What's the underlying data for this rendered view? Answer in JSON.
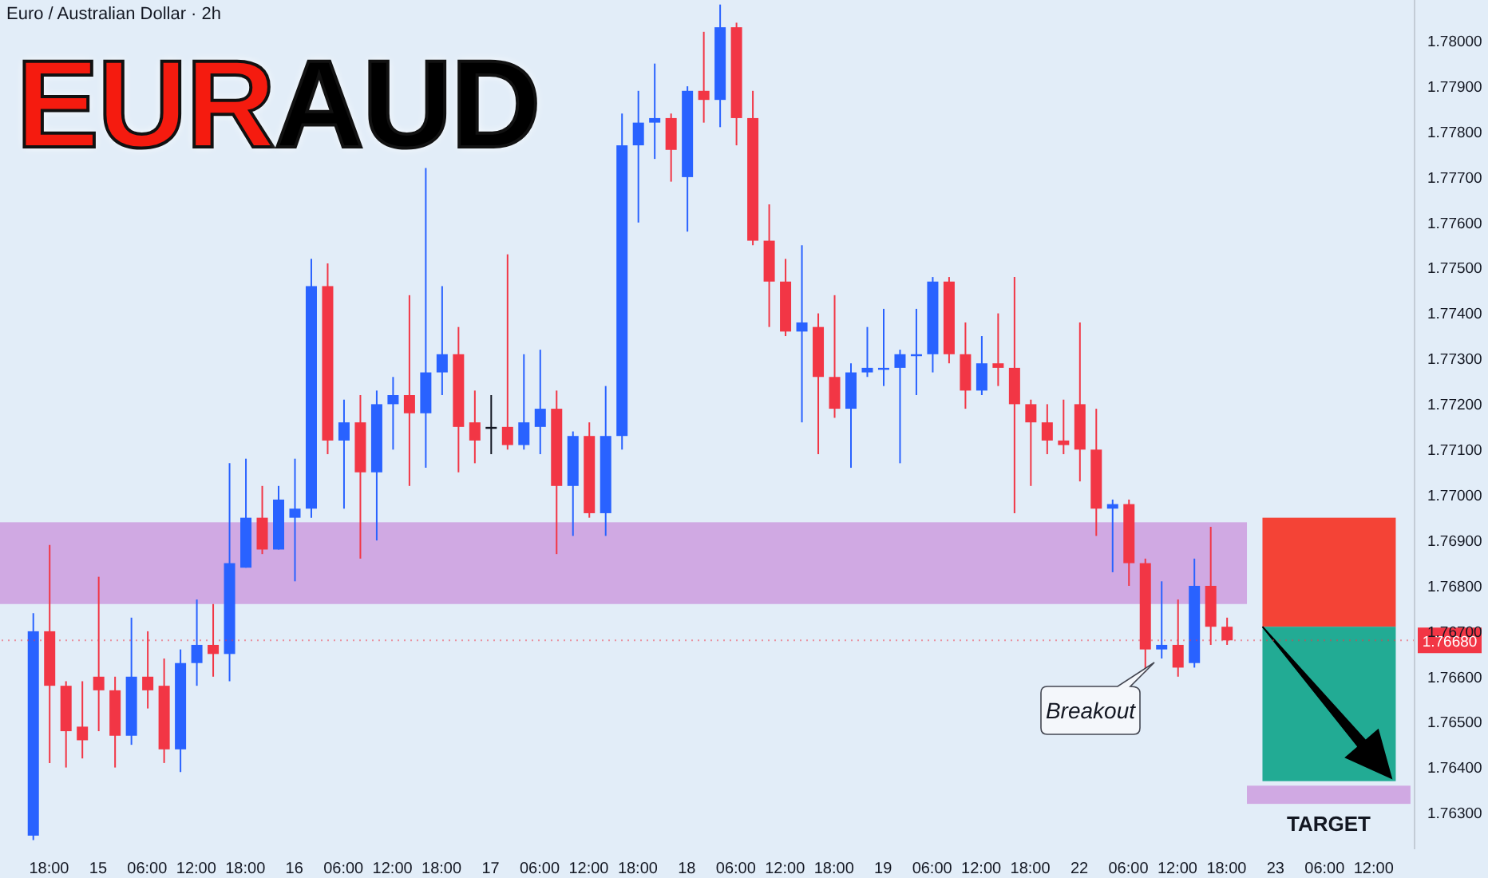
{
  "chart_data": {
    "type": "candlestick",
    "title": "EURAUD",
    "subtitle": "Euro / Australian Dollar · 2h",
    "categories": [
      null,
      "18:00",
      null,
      null,
      "15",
      null,
      null,
      "06:00",
      null,
      null,
      "12:00",
      null,
      null,
      "18:00",
      null,
      null,
      "16",
      null,
      null,
      "06:00",
      null,
      null,
      "12:00",
      null,
      null,
      "18:00",
      null,
      null,
      "17",
      null,
      null,
      "06:00",
      null,
      null,
      "12:00",
      null,
      null,
      "18:00",
      null,
      null,
      "18",
      null,
      null,
      "06:00",
      null,
      null,
      "12:00",
      null,
      null,
      "18:00",
      null,
      null,
      "19",
      null,
      null,
      "06:00",
      null,
      null,
      "12:00",
      null,
      null,
      "18:00",
      null,
      null,
      "22",
      null,
      null,
      "06:00",
      null,
      null,
      "12:00",
      null,
      null,
      "18:00",
      null,
      null,
      "23",
      null,
      null,
      "06:00",
      null,
      null,
      "12:00",
      null,
      null
    ],
    "ohlc": [
      [
        1.7625,
        1.7674,
        1.7624,
        1.767
      ],
      [
        1.767,
        1.7689,
        1.7641,
        1.7658
      ],
      [
        1.7658,
        1.7659,
        1.764,
        1.7648
      ],
      [
        1.7649,
        1.7659,
        1.7642,
        1.7646
      ],
      [
        1.766,
        1.7682,
        1.7648,
        1.7657
      ],
      [
        1.7657,
        1.766,
        1.764,
        1.7647
      ],
      [
        1.7647,
        1.7673,
        1.7645,
        1.766
      ],
      [
        1.766,
        1.767,
        1.7653,
        1.7657
      ],
      [
        1.7658,
        1.7664,
        1.7641,
        1.7644
      ],
      [
        1.7644,
        1.7666,
        1.7639,
        1.7663
      ],
      [
        1.7663,
        1.7677,
        1.7658,
        1.7667
      ],
      [
        1.7667,
        1.7676,
        1.766,
        1.7665
      ],
      [
        1.7665,
        1.7707,
        1.7659,
        1.7685
      ],
      [
        1.7684,
        1.7708,
        1.7684,
        1.7695
      ],
      [
        1.7695,
        1.7702,
        1.7687,
        1.7688
      ],
      [
        1.7688,
        1.7702,
        1.7688,
        1.7699
      ],
      [
        1.7695,
        1.7708,
        1.7681,
        1.7697
      ],
      [
        1.7697,
        1.7752,
        1.7695,
        1.7746
      ],
      [
        1.7746,
        1.7751,
        1.7709,
        1.7712
      ],
      [
        1.7712,
        1.7721,
        1.7697,
        1.7716
      ],
      [
        1.7716,
        1.7722,
        1.7686,
        1.7705
      ],
      [
        1.7705,
        1.7723,
        1.769,
        1.772
      ],
      [
        1.772,
        1.7726,
        1.771,
        1.7722
      ],
      [
        1.7722,
        1.7744,
        1.7702,
        1.7718
      ],
      [
        1.7718,
        1.7772,
        1.7706,
        1.7727
      ],
      [
        1.7727,
        1.7746,
        1.7722,
        1.7731
      ],
      [
        1.7731,
        1.7737,
        1.7705,
        1.7715
      ],
      [
        1.7716,
        1.7723,
        1.7707,
        1.7712
      ],
      [
        1.7715,
        1.7722,
        1.7709,
        1.7715
      ],
      [
        1.7715,
        1.7753,
        1.771,
        1.7711
      ],
      [
        1.7711,
        1.7731,
        1.771,
        1.7716
      ],
      [
        1.7715,
        1.7732,
        1.7709,
        1.7719
      ],
      [
        1.7719,
        1.7723,
        1.7687,
        1.7702
      ],
      [
        1.7702,
        1.7714,
        1.7691,
        1.7713
      ],
      [
        1.7713,
        1.7716,
        1.7695,
        1.7696
      ],
      [
        1.7696,
        1.7724,
        1.7691,
        1.7713
      ],
      [
        1.7713,
        1.7784,
        1.771,
        1.7777
      ],
      [
        1.7777,
        1.7789,
        1.776,
        1.7782
      ],
      [
        1.7782,
        1.7795,
        1.7774,
        1.7783
      ],
      [
        1.7783,
        1.7784,
        1.7769,
        1.7776
      ],
      [
        1.777,
        1.779,
        1.7758,
        1.7789
      ],
      [
        1.7789,
        1.7802,
        1.7782,
        1.7787
      ],
      [
        1.7787,
        1.7808,
        1.7781,
        1.7803
      ],
      [
        1.7803,
        1.7804,
        1.7777,
        1.7783
      ],
      [
        1.7783,
        1.7789,
        1.7755,
        1.7756
      ],
      [
        1.7756,
        1.7764,
        1.7737,
        1.7747
      ],
      [
        1.7747,
        1.7752,
        1.7735,
        1.7736
      ],
      [
        1.7736,
        1.7755,
        1.7716,
        1.7738
      ],
      [
        1.7737,
        1.774,
        1.7709,
        1.7726
      ],
      [
        1.7726,
        1.7744,
        1.7717,
        1.7719
      ],
      [
        1.7719,
        1.7729,
        1.7706,
        1.7727
      ],
      [
        1.7727,
        1.7737,
        1.7726,
        1.7728
      ],
      [
        1.7728,
        1.7741,
        1.7724,
        1.7728
      ],
      [
        1.7728,
        1.7732,
        1.7707,
        1.7731
      ],
      [
        1.7731,
        1.7741,
        1.7722,
        1.7731
      ],
      [
        1.7731,
        1.7748,
        1.7727,
        1.7747
      ],
      [
        1.7747,
        1.7748,
        1.7729,
        1.7731
      ],
      [
        1.7731,
        1.7738,
        1.7719,
        1.7723
      ],
      [
        1.7723,
        1.7735,
        1.7722,
        1.7729
      ],
      [
        1.7729,
        1.774,
        1.7724,
        1.7728
      ],
      [
        1.7728,
        1.7748,
        1.7696,
        1.772
      ],
      [
        1.772,
        1.7721,
        1.7702,
        1.7716
      ],
      [
        1.7716,
        1.772,
        1.7709,
        1.7712
      ],
      [
        1.7712,
        1.7721,
        1.7709,
        1.7711
      ],
      [
        1.772,
        1.7738,
        1.7703,
        1.771
      ],
      [
        1.771,
        1.7719,
        1.7691,
        1.7697
      ],
      [
        1.7697,
        1.7699,
        1.7683,
        1.7698
      ],
      [
        1.7698,
        1.7699,
        1.768,
        1.7685
      ],
      [
        1.7685,
        1.7686,
        1.7661,
        1.7666
      ],
      [
        1.7666,
        1.7681,
        1.7664,
        1.7667
      ],
      [
        1.7667,
        1.7677,
        1.766,
        1.7662
      ],
      [
        1.7663,
        1.7686,
        1.7662,
        1.768
      ],
      [
        1.768,
        1.7693,
        1.7667,
        1.7671
      ],
      [
        1.7671,
        1.7673,
        1.7667,
        1.7668
      ],
      null,
      null,
      null,
      null,
      null,
      null,
      null,
      null,
      null,
      null,
      null
    ],
    "colors": [
      "#2962ff",
      "#f23645",
      "#f23645",
      "#f23645",
      "#f23645",
      "#f23645",
      "#2962ff",
      "#f23645",
      "#f23645",
      "#2962ff",
      "#2962ff",
      "#f23645",
      "#2962ff",
      "#2962ff",
      "#f23645",
      "#2962ff",
      "#2962ff",
      "#2962ff",
      "#f23645",
      "#2962ff",
      "#f23645",
      "#2962ff",
      "#2962ff",
      "#f23645",
      "#2962ff",
      "#2962ff",
      "#f23645",
      "#f23645",
      "#131722",
      "#f23645",
      "#2962ff",
      "#2962ff",
      "#f23645",
      "#2962ff",
      "#f23645",
      "#2962ff",
      "#2962ff",
      "#2962ff",
      "#2962ff",
      "#f23645",
      "#2962ff",
      "#f23645",
      "#2962ff",
      "#f23645",
      "#f23645",
      "#f23645",
      "#f23645",
      "#2962ff",
      "#f23645",
      "#f23645",
      "#2962ff",
      "#2962ff",
      "#2962ff",
      "#2962ff",
      "#2962ff",
      "#2962ff",
      "#f23645",
      "#f23645",
      "#2962ff",
      "#f23645",
      "#f23645",
      "#f23645",
      "#f23645",
      "#f23645",
      "#f23645",
      "#f23645",
      "#2962ff",
      "#f23645",
      "#f23645",
      "#2962ff",
      "#f23645",
      "#2962ff",
      "#f23645",
      "#f23645",
      null,
      null,
      null,
      null,
      null,
      null,
      null,
      null,
      null,
      null,
      null
    ],
    "ylim": [
      1.7622,
      1.7809
    ],
    "yticks": [
      {
        "value": 1.763,
        "label": "1.76300"
      },
      {
        "value": 1.764,
        "label": "1.76400"
      },
      {
        "value": 1.765,
        "label": "1.76500"
      },
      {
        "value": 1.766,
        "label": "1.76600"
      },
      {
        "value": 1.767,
        "label": "1.76700"
      },
      {
        "value": 1.768,
        "label": "1.76800"
      },
      {
        "value": 1.769,
        "label": "1.76900"
      },
      {
        "value": 1.77,
        "label": "1.77000"
      },
      {
        "value": 1.771,
        "label": "1.77100"
      },
      {
        "value": 1.772,
        "label": "1.77200"
      },
      {
        "value": 1.773,
        "label": "1.77300"
      },
      {
        "value": 1.774,
        "label": "1.77400"
      },
      {
        "value": 1.775,
        "label": "1.77500"
      },
      {
        "value": 1.776,
        "label": "1.77600"
      },
      {
        "value": 1.777,
        "label": "1.77700"
      },
      {
        "value": 1.778,
        "label": "1.77800"
      },
      {
        "value": 1.779,
        "label": "1.77900"
      },
      {
        "value": 1.78,
        "label": "1.78000"
      }
    ],
    "bands": [
      {
        "axis": "y",
        "from": 1.7676,
        "to": 1.7694,
        "color": "#d0a9e3"
      },
      {
        "axis": "y",
        "from": 1.7671,
        "to": 1.7695,
        "color": "#f44336"
      },
      {
        "axis": "y",
        "from": 1.7637,
        "to": 1.7671,
        "color": "#22ab94"
      },
      {
        "axis": "y",
        "from": 1.7632,
        "to": 1.7636,
        "label": "TARGET",
        "color": "#d0a9e3"
      }
    ],
    "ref_lines": [
      {
        "axis": "y",
        "value": 1.7668,
        "label": "1.76680",
        "color": "#f23645"
      }
    ],
    "annotations": [
      "Breakout"
    ]
  }
}
